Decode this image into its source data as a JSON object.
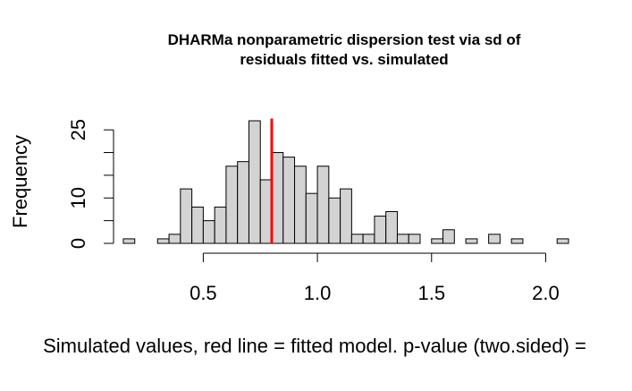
{
  "chart_data": {
    "type": "histogram",
    "title_line1": "DHARMa nonparametric dispersion test via sd of",
    "title_line2": "residuals fitted vs. simulated",
    "xlabel": "Simulated values, red line = fitted model. p-value (two.sided) =",
    "ylabel": "Frequency",
    "x_ticks": [
      0.5,
      1.0,
      1.5,
      2.0
    ],
    "x_tick_labels": [
      "0.5",
      "1.0",
      "1.5",
      "2.0"
    ],
    "y_ticks": [
      0,
      10,
      25
    ],
    "y_tick_labels": [
      "0",
      "10",
      "25"
    ],
    "y_minor_ticks": [
      5,
      15,
      20
    ],
    "xlim": [
      0.15,
      2.1
    ],
    "ylim": [
      0,
      27
    ],
    "bin_width": 0.05,
    "bins_start": [
      0.15,
      0.2,
      0.25,
      0.3,
      0.35,
      0.4,
      0.45,
      0.5,
      0.55,
      0.6,
      0.65,
      0.7,
      0.75,
      0.8,
      0.85,
      0.9,
      0.95,
      1.0,
      1.05,
      1.1,
      1.15,
      1.2,
      1.25,
      1.3,
      1.35,
      1.4,
      1.45,
      1.5,
      1.55,
      1.6,
      1.65,
      1.7,
      1.75,
      1.8,
      1.85,
      1.9,
      1.95,
      2.0,
      2.05
    ],
    "counts": [
      1,
      0,
      0,
      1,
      2,
      12,
      8,
      5,
      8,
      17,
      18,
      27,
      14,
      20,
      19,
      17,
      11,
      17,
      10,
      12,
      2,
      2,
      6,
      7,
      2,
      2,
      0,
      1,
      3,
      0,
      1,
      0,
      2,
      0,
      1,
      0,
      0,
      0,
      1
    ],
    "observed_value": 0.8,
    "observed_line_color": "#ff0000",
    "bar_fill": "#d3d3d3",
    "bar_stroke": "#000000"
  }
}
